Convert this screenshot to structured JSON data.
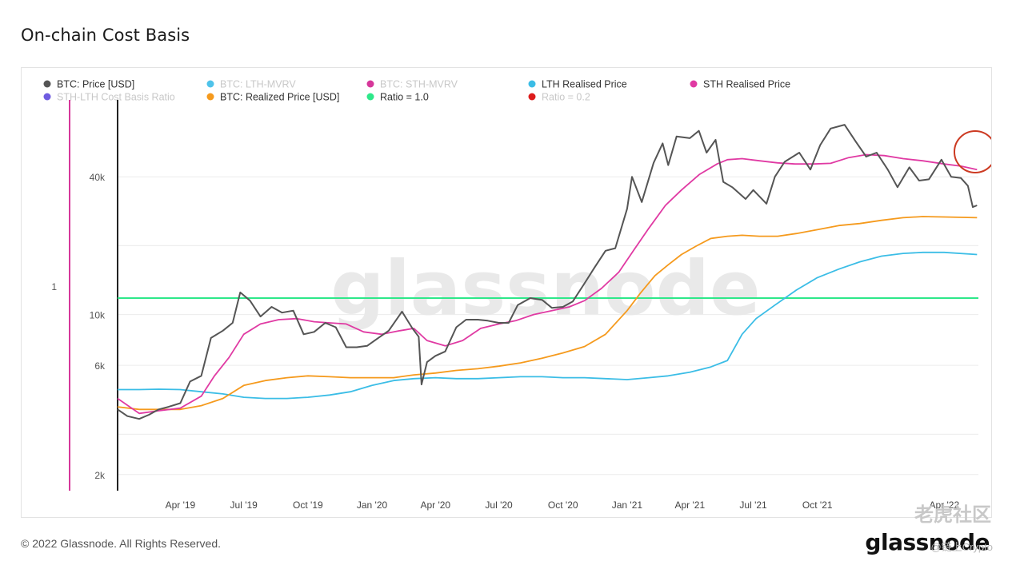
{
  "title": "On-chain Cost Basis",
  "footer": "© 2022 Glassnode. All Rights Reserved.",
  "brand": "glassnode",
  "watermark_center": "glassnode",
  "watermark_cn": "老虎社区",
  "watermark_bottom": "@链上Crypto",
  "colors": {
    "price": "#555555",
    "lth_mvrv": "#4fc3ea",
    "sth_mvrv": "#d6379a",
    "lth_realised": "#3bbde6",
    "sth_realised": "#e03aa3",
    "ratio_series": "#6f5ce0",
    "realized": "#f59a1d",
    "ratio_1": "#2ee88a",
    "ratio_02": "#dd1c1c",
    "annotation_circle": "#cc3a22"
  },
  "chart_data": {
    "type": "line",
    "title": "On-chain Cost Basis",
    "y_scale": "log",
    "ylim": [
      1700,
      80000
    ],
    "y_ticks": [
      {
        "value": 2000,
        "label": "2k"
      },
      {
        "value": 6000,
        "label": "6k"
      },
      {
        "value": 10000,
        "label": "10k"
      },
      {
        "value": 40000,
        "label": "40k"
      }
    ],
    "secondary_y_ticks": [
      {
        "value": 1,
        "label": "1"
      }
    ],
    "xlim": [
      "2019-01-01",
      "2022-05-20"
    ],
    "x_ticks": [
      {
        "date": "2019-04-01",
        "label": "Apr '19"
      },
      {
        "date": "2019-07-01",
        "label": "Jul '19"
      },
      {
        "date": "2019-10-01",
        "label": "Oct '19"
      },
      {
        "date": "2020-01-01",
        "label": "Jan '20"
      },
      {
        "date": "2020-04-01",
        "label": "Apr '20"
      },
      {
        "date": "2020-07-01",
        "label": "Jul '20"
      },
      {
        "date": "2020-10-01",
        "label": "Oct '20"
      },
      {
        "date": "2021-01-01",
        "label": "Jan '21"
      },
      {
        "date": "2021-04-01",
        "label": "Apr '21"
      },
      {
        "date": "2021-07-01",
        "label": "Jul '21"
      },
      {
        "date": "2021-10-01",
        "label": "Oct '21"
      },
      {
        "date": "2022-04-01",
        "label": "Apr '22"
      }
    ],
    "legend": [
      {
        "name": "BTC: Price [USD]",
        "color": "#555555",
        "visible": true
      },
      {
        "name": "BTC: LTH-MVRV",
        "color": "#4fc3ea",
        "visible": false
      },
      {
        "name": "BTC: STH-MVRV",
        "color": "#d6379a",
        "visible": false
      },
      {
        "name": "LTH Realised Price",
        "color": "#3bbde6",
        "visible": true
      },
      {
        "name": "STH Realised Price",
        "color": "#e03aa3",
        "visible": true
      },
      {
        "name": "STH-LTH Cost Basis Ratio",
        "color": "#6f5ce0",
        "visible": false
      },
      {
        "name": "BTC: Realized Price [USD]",
        "color": "#f59a1d",
        "visible": true
      },
      {
        "name": "Ratio = 1.0",
        "color": "#2ee88a",
        "visible": true
      },
      {
        "name": "Ratio = 0.2",
        "color": "#dd1c1c",
        "visible": false
      }
    ],
    "reference_lines": [
      {
        "name": "Ratio = 1.0",
        "value": 1.0,
        "y_price_equiv": 11800
      }
    ],
    "series": [
      {
        "key": "price",
        "name": "BTC: Price [USD]",
        "x": [
          "2019-01-01",
          "2019-01-15",
          "2019-02-01",
          "2019-02-15",
          "2019-03-01",
          "2019-03-15",
          "2019-04-01",
          "2019-04-15",
          "2019-05-01",
          "2019-05-15",
          "2019-06-01",
          "2019-06-15",
          "2019-06-26",
          "2019-07-10",
          "2019-07-25",
          "2019-08-10",
          "2019-08-25",
          "2019-09-10",
          "2019-09-25",
          "2019-10-10",
          "2019-10-26",
          "2019-11-10",
          "2019-11-25",
          "2019-12-10",
          "2019-12-25",
          "2020-01-10",
          "2020-01-25",
          "2020-02-13",
          "2020-02-28",
          "2020-03-08",
          "2020-03-12",
          "2020-03-20",
          "2020-04-01",
          "2020-04-15",
          "2020-05-01",
          "2020-05-15",
          "2020-06-01",
          "2020-06-15",
          "2020-07-01",
          "2020-07-15",
          "2020-07-28",
          "2020-08-15",
          "2020-09-01",
          "2020-09-15",
          "2020-10-01",
          "2020-10-15",
          "2020-11-01",
          "2020-11-15",
          "2020-12-01",
          "2020-12-15",
          "2021-01-01",
          "2021-01-08",
          "2021-01-22",
          "2021-02-08",
          "2021-02-21",
          "2021-03-01",
          "2021-03-13",
          "2021-04-01",
          "2021-04-14",
          "2021-04-25",
          "2021-05-08",
          "2021-05-19",
          "2021-06-01",
          "2021-06-20",
          "2021-07-01",
          "2021-07-20",
          "2021-08-01",
          "2021-08-15",
          "2021-09-05",
          "2021-09-21",
          "2021-10-05",
          "2021-10-20",
          "2021-11-09",
          "2021-11-25",
          "2021-12-10",
          "2021-12-25",
          "2022-01-10",
          "2022-01-24",
          "2022-02-10",
          "2022-02-24",
          "2022-03-10",
          "2022-03-28",
          "2022-04-11",
          "2022-04-25",
          "2022-05-05",
          "2022-05-12",
          "2022-05-18"
        ],
        "y": [
          3850,
          3600,
          3500,
          3650,
          3850,
          3950,
          4100,
          5100,
          5400,
          7900,
          8500,
          9200,
          12500,
          11500,
          9800,
          10800,
          10200,
          10400,
          8200,
          8400,
          9200,
          8800,
          7200,
          7200,
          7300,
          7900,
          8500,
          10300,
          8700,
          8000,
          4950,
          6200,
          6600,
          6900,
          8800,
          9500,
          9500,
          9400,
          9200,
          9200,
          11000,
          11800,
          11600,
          10700,
          10800,
          11400,
          13700,
          16000,
          19000,
          19500,
          29000,
          40000,
          31000,
          46000,
          56000,
          45000,
          60000,
          59000,
          63500,
          51000,
          58000,
          38000,
          36000,
          32000,
          35000,
          30500,
          40000,
          46500,
          51000,
          43000,
          55000,
          65000,
          67500,
          57000,
          49000,
          51000,
          43000,
          36000,
          44000,
          38500,
          39000,
          47500,
          40000,
          39500,
          36500,
          29500,
          30000
        ]
      },
      {
        "key": "sth_realised",
        "name": "STH Realised Price",
        "x": [
          "2019-01-01",
          "2019-02-01",
          "2019-03-01",
          "2019-04-01",
          "2019-05-01",
          "2019-05-20",
          "2019-06-10",
          "2019-07-01",
          "2019-07-25",
          "2019-08-20",
          "2019-09-15",
          "2019-10-10",
          "2019-11-01",
          "2019-11-25",
          "2019-12-20",
          "2020-01-15",
          "2020-02-10",
          "2020-03-01",
          "2020-03-20",
          "2020-04-15",
          "2020-05-10",
          "2020-06-05",
          "2020-07-01",
          "2020-07-25",
          "2020-08-20",
          "2020-09-15",
          "2020-10-10",
          "2020-11-01",
          "2020-11-25",
          "2020-12-20",
          "2021-01-10",
          "2021-02-01",
          "2021-02-25",
          "2021-03-20",
          "2021-04-15",
          "2021-05-10",
          "2021-05-25",
          "2021-06-15",
          "2021-07-10",
          "2021-08-05",
          "2021-08-30",
          "2021-09-25",
          "2021-10-20",
          "2021-11-15",
          "2021-12-10",
          "2022-01-05",
          "2022-02-01",
          "2022-03-01",
          "2022-04-01",
          "2022-04-25",
          "2022-05-18"
        ],
        "y": [
          4300,
          3700,
          3800,
          3900,
          4400,
          5400,
          6500,
          8200,
          9100,
          9500,
          9600,
          9300,
          9200,
          9100,
          8400,
          8200,
          8500,
          8700,
          7700,
          7300,
          7700,
          8700,
          9100,
          9400,
          10000,
          10400,
          10800,
          11500,
          13000,
          15300,
          19000,
          23800,
          30000,
          35000,
          41000,
          45500,
          47500,
          48000,
          47000,
          46000,
          45500,
          45500,
          45800,
          48500,
          50000,
          49500,
          48000,
          47000,
          45500,
          44500,
          43000
        ]
      },
      {
        "key": "realized",
        "name": "BTC: Realized Price [USD]",
        "x": [
          "2019-01-01",
          "2019-02-01",
          "2019-03-01",
          "2019-04-01",
          "2019-05-01",
          "2019-06-01",
          "2019-07-01",
          "2019-08-01",
          "2019-09-01",
          "2019-10-01",
          "2019-11-01",
          "2019-12-01",
          "2020-01-01",
          "2020-02-01",
          "2020-03-01",
          "2020-04-01",
          "2020-05-01",
          "2020-06-01",
          "2020-07-01",
          "2020-08-01",
          "2020-09-01",
          "2020-10-01",
          "2020-11-01",
          "2020-12-01",
          "2021-01-01",
          "2021-01-20",
          "2021-02-10",
          "2021-03-01",
          "2021-03-20",
          "2021-04-10",
          "2021-05-01",
          "2021-05-25",
          "2021-06-15",
          "2021-07-10",
          "2021-08-05",
          "2021-09-01",
          "2021-10-01",
          "2021-11-01",
          "2021-12-01",
          "2022-01-01",
          "2022-02-01",
          "2022-03-01",
          "2022-04-01",
          "2022-05-18"
        ],
        "y": [
          3950,
          3850,
          3850,
          3850,
          4000,
          4300,
          4900,
          5150,
          5300,
          5400,
          5350,
          5300,
          5300,
          5300,
          5450,
          5550,
          5700,
          5800,
          5950,
          6150,
          6450,
          6800,
          7250,
          8200,
          10400,
          12400,
          14800,
          16500,
          18300,
          19900,
          21500,
          22000,
          22200,
          22000,
          22000,
          22600,
          23500,
          24500,
          25000,
          25800,
          26500,
          26800,
          26700,
          26500
        ]
      },
      {
        "key": "lth_realised",
        "name": "LTH Realised Price",
        "x": [
          "2019-01-01",
          "2019-02-01",
          "2019-03-01",
          "2019-04-01",
          "2019-05-01",
          "2019-06-01",
          "2019-07-01",
          "2019-08-01",
          "2019-09-01",
          "2019-10-01",
          "2019-11-01",
          "2019-12-01",
          "2020-01-01",
          "2020-02-01",
          "2020-03-01",
          "2020-04-01",
          "2020-05-01",
          "2020-06-01",
          "2020-07-01",
          "2020-08-01",
          "2020-09-01",
          "2020-10-01",
          "2020-11-01",
          "2020-12-01",
          "2021-01-01",
          "2021-02-01",
          "2021-03-01",
          "2021-04-01",
          "2021-05-01",
          "2021-05-25",
          "2021-06-15",
          "2021-07-05",
          "2021-08-01",
          "2021-09-01",
          "2021-10-01",
          "2021-11-01",
          "2021-12-01",
          "2022-01-01",
          "2022-02-01",
          "2022-03-01",
          "2022-04-01",
          "2022-05-18"
        ],
        "y": [
          4700,
          4700,
          4720,
          4700,
          4600,
          4500,
          4350,
          4300,
          4300,
          4350,
          4450,
          4600,
          4900,
          5150,
          5250,
          5300,
          5250,
          5250,
          5300,
          5350,
          5350,
          5300,
          5300,
          5250,
          5200,
          5300,
          5400,
          5600,
          5900,
          6300,
          8200,
          9600,
          11000,
          12800,
          14500,
          15800,
          17000,
          18000,
          18500,
          18700,
          18700,
          18300
        ]
      }
    ]
  }
}
